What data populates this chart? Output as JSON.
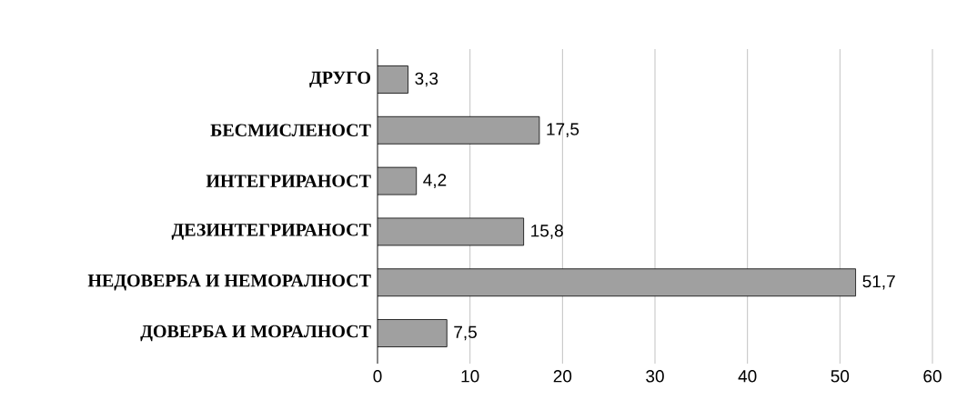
{
  "chart_data": {
    "type": "bar",
    "orientation": "horizontal",
    "categories": [
      "ДРУГО",
      "БЕСМИСЛЕНОСТ",
      "ИНТЕГРИРАНОСТ",
      "ДЕЗИНТЕГРИРАНОСТ",
      "НЕДОВЕРБА И НЕМОРАЛНОСТ",
      "ДОВЕРБА И МОРАЛНОСТ"
    ],
    "values": [
      3.3,
      17.5,
      4.2,
      15.8,
      51.7,
      7.5
    ],
    "value_labels": [
      "3,3",
      "17,5",
      "4,2",
      "15,8",
      "51,7",
      "7,5"
    ],
    "color": "#a0a0a0",
    "xlim": [
      0,
      60
    ],
    "xticks": [
      0,
      10,
      20,
      30,
      40,
      50,
      60
    ],
    "grid": "x"
  }
}
